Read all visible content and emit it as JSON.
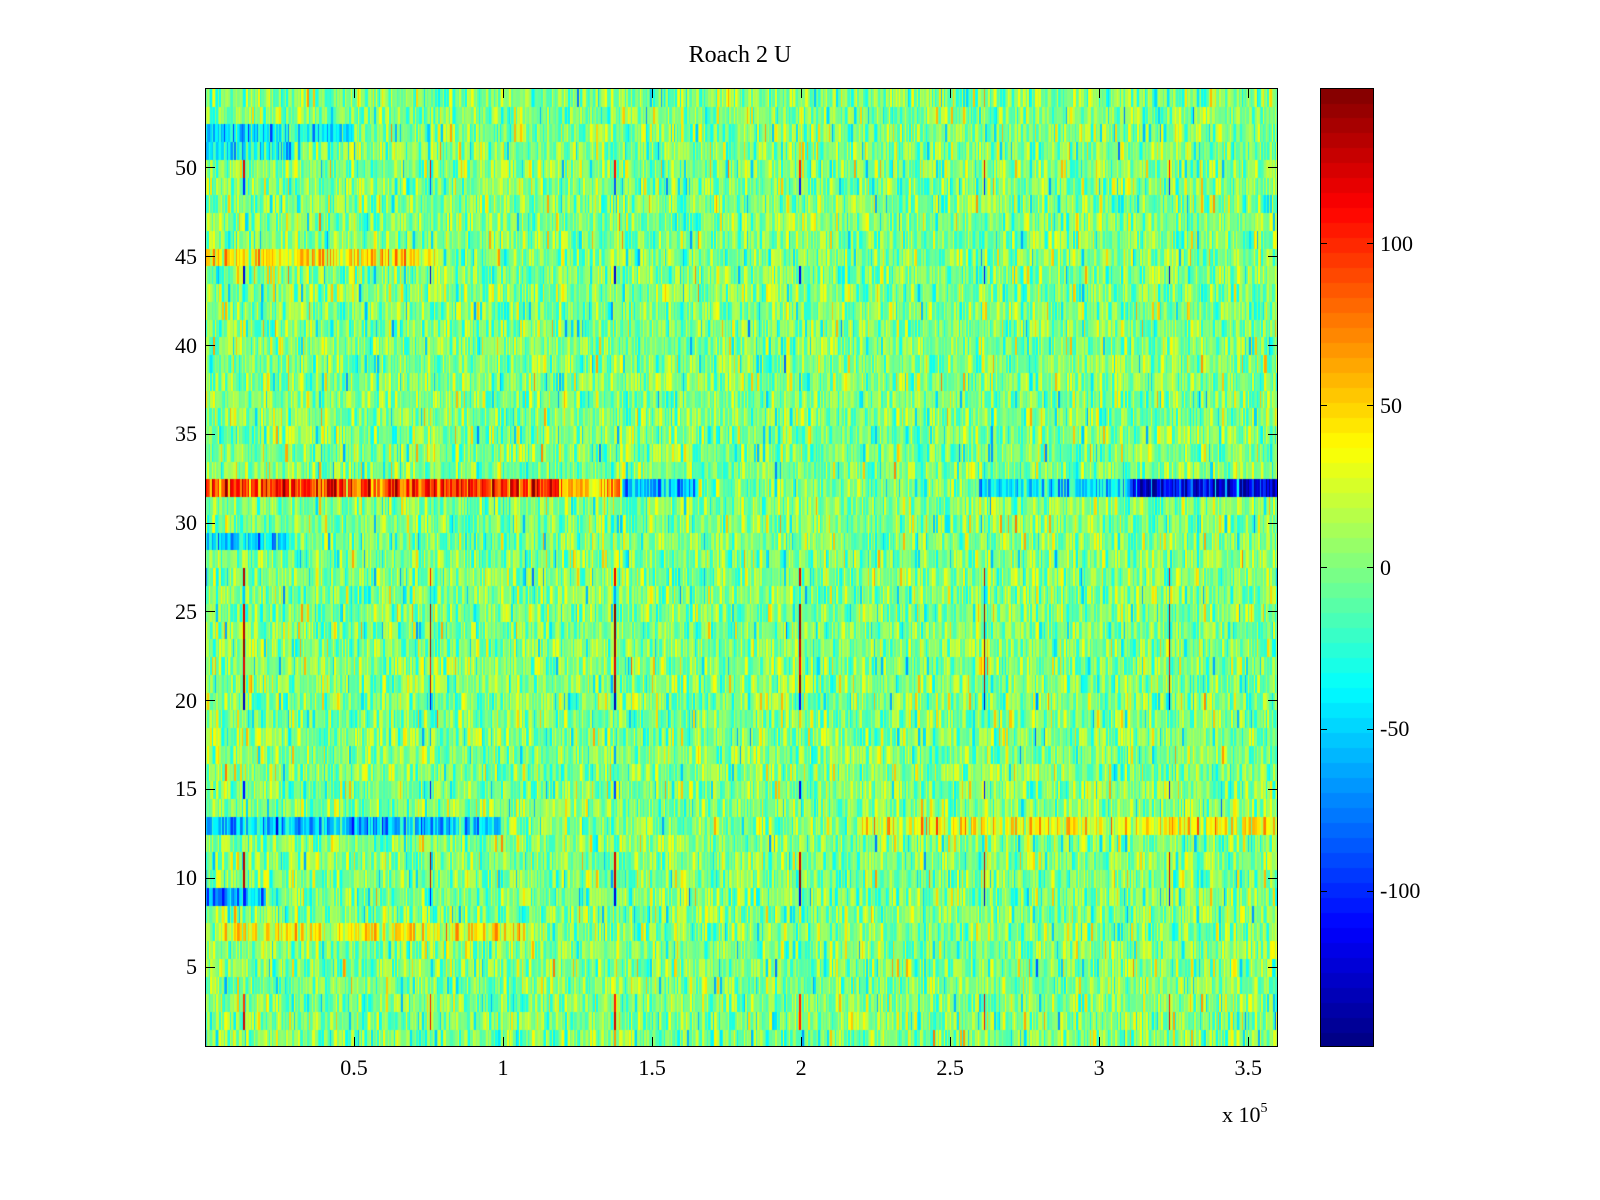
{
  "chart_data": {
    "type": "heatmap",
    "title": "Roach 2 U",
    "xlabel": "",
    "ylabel": "",
    "x_multiplier_label": "x 10",
    "x_multiplier_exponent": "5",
    "xlim": [
      0,
      360000
    ],
    "ylim": [
      0.5,
      54.5
    ],
    "rows": 54,
    "columns": 720,
    "clim": [
      -148,
      148
    ],
    "colormap": "jet",
    "x_ticks": [
      50000,
      100000,
      150000,
      200000,
      250000,
      300000,
      350000
    ],
    "x_tick_labels": [
      "0.5",
      "1",
      "1.5",
      "2",
      "2.5",
      "3",
      "3.5"
    ],
    "y_ticks": [
      5,
      10,
      15,
      20,
      25,
      30,
      35,
      40,
      45,
      50
    ],
    "y_tick_labels": [
      "5",
      "10",
      "15",
      "20",
      "25",
      "30",
      "35",
      "40",
      "45",
      "50"
    ],
    "colorbar_ticks": [
      100,
      50,
      0,
      -50,
      -100
    ],
    "colorbar_tick_labels": [
      "100",
      "50",
      "0",
      "-50",
      "-100"
    ],
    "noise": {
      "mean": 0,
      "std": 22,
      "seed": 7
    },
    "row_features": [
      {
        "row": 32,
        "x_range": [
          0,
          120000
        ],
        "offset": 95
      },
      {
        "row": 32,
        "x_range": [
          120000,
          140000
        ],
        "offset": 50
      },
      {
        "row": 32,
        "x_range": [
          140000,
          165000
        ],
        "offset": -60
      },
      {
        "row": 32,
        "x_range": [
          260000,
          310000
        ],
        "offset": -45
      },
      {
        "row": 32,
        "x_range": [
          310000,
          360000
        ],
        "offset": -115
      },
      {
        "row": 13,
        "x_range": [
          0,
          100000
        ],
        "offset": -55
      },
      {
        "row": 13,
        "x_range": [
          220000,
          360000
        ],
        "offset": 35
      },
      {
        "row": 9,
        "x_range": [
          0,
          20000
        ],
        "offset": -65
      },
      {
        "row": 7,
        "x_range": [
          0,
          110000
        ],
        "offset": 30
      },
      {
        "row": 45,
        "x_range": [
          0,
          80000
        ],
        "offset": 40
      },
      {
        "row": 29,
        "x_range": [
          0,
          30000
        ],
        "offset": -45
      },
      {
        "row": 52,
        "x_range": [
          0,
          50000
        ],
        "offset": -40
      },
      {
        "row": 51,
        "x_range": [
          0,
          30000
        ],
        "offset": -35
      }
    ],
    "spike_columns_x": [
      13000,
      75500,
      137600,
      199700,
      261700,
      323800
    ],
    "spike_rows": [
      {
        "row": 2,
        "value": 120
      },
      {
        "row": 3,
        "value": 110
      },
      {
        "row": 9,
        "value": -120
      },
      {
        "row": 10,
        "value": 135
      },
      {
        "row": 11,
        "value": 130
      },
      {
        "row": 15,
        "value": -110
      },
      {
        "row": 20,
        "value": -130
      },
      {
        "row": 21,
        "value": 140
      },
      {
        "row": 22,
        "value": 110
      },
      {
        "row": 23,
        "value": 140
      },
      {
        "row": 24,
        "value": 140
      },
      {
        "row": 25,
        "value": 140
      },
      {
        "row": 26,
        "value": -50
      },
      {
        "row": 27,
        "value": 115
      },
      {
        "row": 44,
        "value": -125
      },
      {
        "row": 49,
        "value": -100
      },
      {
        "row": 50,
        "value": 110
      }
    ]
  }
}
